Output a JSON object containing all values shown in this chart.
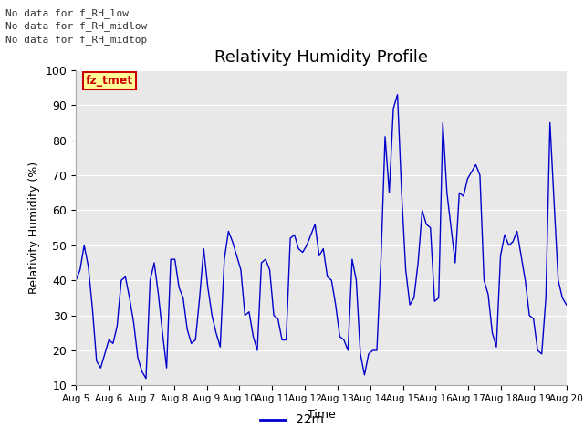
{
  "title": "Relativity Humidity Profile",
  "xlabel": "Time",
  "ylabel": "Relativity Humidity (%)",
  "ylim": [
    10,
    100
  ],
  "yticks": [
    10,
    20,
    30,
    40,
    50,
    60,
    70,
    80,
    90,
    100
  ],
  "xtick_labels": [
    "Aug 5",
    "Aug 6",
    "Aug 7",
    "Aug 8",
    "Aug 9",
    "Aug 10",
    "Aug 11",
    "Aug 12",
    "Aug 13",
    "Aug 14",
    "Aug 15",
    "Aug 16",
    "Aug 17",
    "Aug 18",
    "Aug 19",
    "Aug 20"
  ],
  "line_color": "#0000cc",
  "line_label": "22m",
  "background_color": "#e8e8e8",
  "annotations": [
    "No data for f_RH_low",
    "No data for f_RH_midlow",
    "No data for f_RH_midtop"
  ],
  "annotation_color": "#333333",
  "fz_tmet_label": "fz_tmet",
  "fz_tmet_color": "#cc0000",
  "fz_tmet_bg": "#ffff99",
  "y_values": [
    40,
    43,
    50,
    44,
    32,
    17,
    15,
    19,
    23,
    22,
    27,
    40,
    41,
    35,
    28,
    18,
    14,
    12,
    40,
    45,
    36,
    25,
    15,
    46,
    46,
    38,
    35,
    26,
    22,
    23,
    35,
    49,
    38,
    30,
    25,
    21,
    46,
    54,
    51,
    47,
    43,
    30,
    31,
    24,
    20,
    45,
    46,
    43,
    30,
    29,
    23,
    23,
    52,
    53,
    49,
    48,
    50,
    53,
    56,
    47,
    49,
    41,
    40,
    33,
    24,
    23,
    20,
    46,
    40,
    19,
    13,
    19,
    20,
    20,
    46,
    81,
    65,
    89,
    93,
    65,
    43,
    33,
    35,
    45,
    60,
    56,
    55,
    34,
    35,
    85,
    65,
    55,
    45,
    65,
    64,
    69,
    71,
    73,
    70,
    40,
    36,
    25,
    21,
    47,
    53,
    50,
    51,
    54,
    47,
    40,
    30,
    29,
    20,
    19,
    35,
    85,
    62,
    40,
    35,
    33
  ]
}
